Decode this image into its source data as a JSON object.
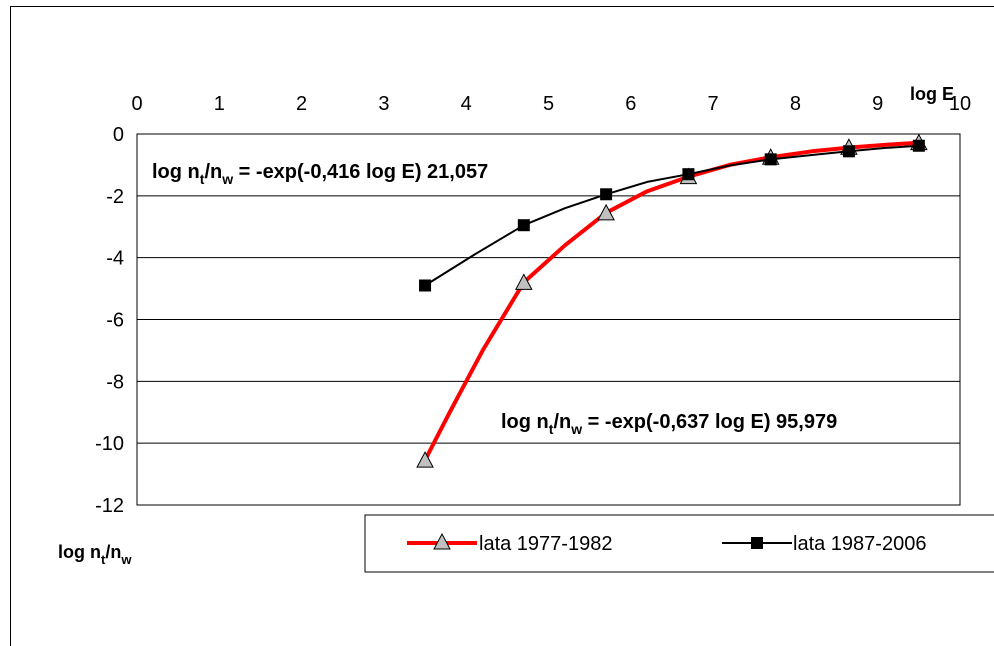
{
  "chart_data": {
    "type": "line",
    "xlabel": "log E",
    "ylabel_main": "log n",
    "ylabel_sub1": "t",
    "ylabel_mid": "/n",
    "ylabel_sub2": "w",
    "xlim": [
      0,
      10
    ],
    "ylim": [
      -12,
      0
    ],
    "x_ticks": [
      0,
      1,
      2,
      3,
      4,
      5,
      6,
      7,
      8,
      9,
      10
    ],
    "y_ticks": [
      0,
      -2,
      -4,
      -6,
      -8,
      -10,
      -12
    ],
    "x_tick_labels": [
      "0",
      "1",
      "2",
      "3",
      "4",
      "5",
      "6",
      "7",
      "8",
      "9",
      "10"
    ],
    "y_tick_labels": [
      "0",
      "-2",
      "-4",
      "-6",
      "-8",
      "-10",
      "-12"
    ],
    "grid": true,
    "x_axis_position": "top",
    "legend_position": "bottom",
    "series": [
      {
        "name": "lata 1977-1982",
        "color": "#ff0000",
        "marker": "triangle",
        "marker_color": "#c0c0c0",
        "line": [
          [
            3.5,
            -10.55
          ],
          [
            3.8,
            -9.0
          ],
          [
            4.2,
            -7.0
          ],
          [
            4.7,
            -4.8
          ],
          [
            5.2,
            -3.6
          ],
          [
            5.7,
            -2.55
          ],
          [
            6.2,
            -1.85
          ],
          [
            6.7,
            -1.38
          ],
          [
            7.2,
            -1.0
          ],
          [
            7.7,
            -0.75
          ],
          [
            8.2,
            -0.56
          ],
          [
            8.7,
            -0.43
          ],
          [
            9.2,
            -0.33
          ],
          [
            9.5,
            -0.28
          ]
        ],
        "points": [
          [
            3.5,
            -10.55
          ],
          [
            4.7,
            -4.8
          ],
          [
            5.7,
            -2.55
          ],
          [
            6.7,
            -1.38
          ],
          [
            7.7,
            -0.75
          ],
          [
            8.65,
            -0.43
          ],
          [
            9.5,
            -0.28
          ]
        ]
      },
      {
        "name": "lata 1987-2006",
        "color": "#000000",
        "marker": "square",
        "marker_color": "#000000",
        "line": [
          [
            3.5,
            -4.9
          ],
          [
            4.1,
            -3.9
          ],
          [
            4.7,
            -2.95
          ],
          [
            5.2,
            -2.4
          ],
          [
            5.7,
            -1.95
          ],
          [
            6.2,
            -1.55
          ],
          [
            6.7,
            -1.3
          ],
          [
            7.2,
            -1.02
          ],
          [
            7.7,
            -0.82
          ],
          [
            8.2,
            -0.68
          ],
          [
            8.65,
            -0.56
          ],
          [
            9.1,
            -0.45
          ],
          [
            9.5,
            -0.38
          ]
        ],
        "points": [
          [
            3.5,
            -4.9
          ],
          [
            4.7,
            -2.95
          ],
          [
            5.7,
            -1.95
          ],
          [
            6.7,
            -1.3
          ],
          [
            7.7,
            -0.82
          ],
          [
            8.65,
            -0.56
          ],
          [
            9.5,
            -0.38
          ]
        ]
      }
    ],
    "annotations": [
      {
        "pre": "log n",
        "sub1": "t",
        "mid": "/n",
        "sub2": "w",
        "post": " = -exp(-0,416 log E) 21,057"
      },
      {
        "pre": "log n",
        "sub1": "t",
        "mid": "/n",
        "sub2": "w",
        "post": " = -exp(-0,637 log E) 95,979"
      }
    ]
  }
}
